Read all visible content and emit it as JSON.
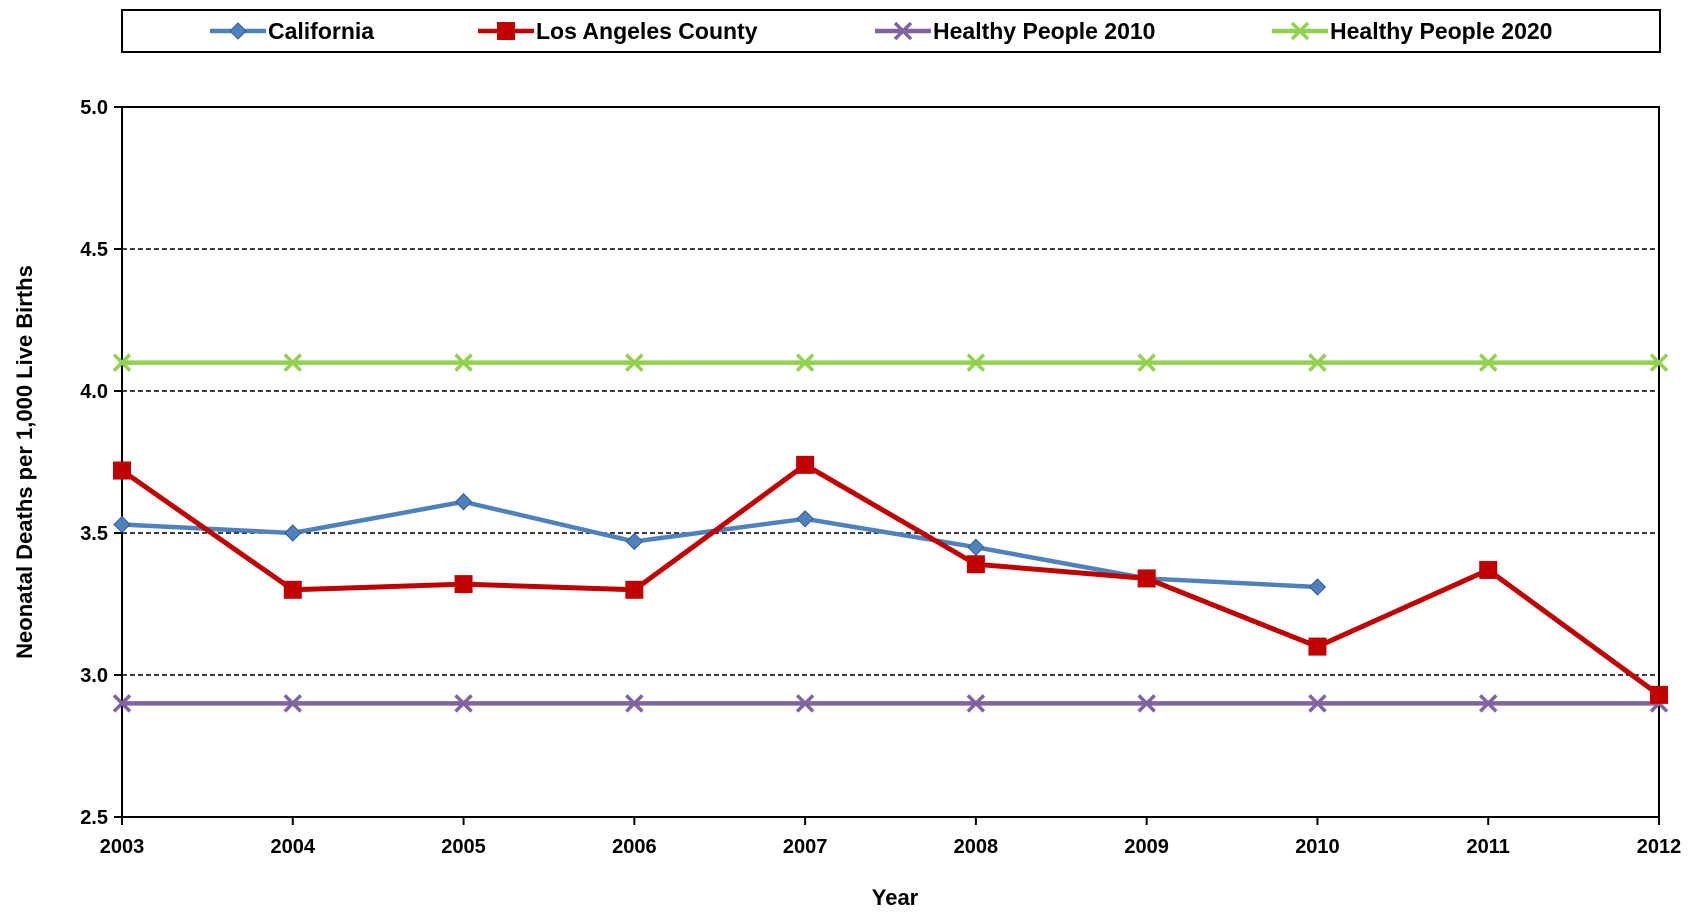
{
  "chart_data": {
    "type": "line",
    "title": "",
    "xlabel": "Year",
    "ylabel": "Neonatal Deaths per 1,000 Live Births",
    "x": [
      "2003",
      "2004",
      "2005",
      "2006",
      "2007",
      "2008",
      "2009",
      "2010",
      "2011",
      "2012"
    ],
    "yticks": [
      "2.5",
      "3.0",
      "3.5",
      "4.0",
      "4.5",
      "5.0"
    ],
    "ylim": [
      2.5,
      5.0
    ],
    "grid": "horizontal dashed",
    "legend_position": "top",
    "series": [
      {
        "name": "California",
        "color": "#4f81bd",
        "marker": "diamond",
        "values": [
          3.53,
          3.5,
          3.61,
          3.47,
          3.55,
          3.45,
          3.34,
          3.31,
          null,
          null
        ]
      },
      {
        "name": "Los Angeles County",
        "color": "#c00000",
        "marker": "square",
        "values": [
          3.72,
          3.3,
          3.32,
          3.3,
          3.74,
          3.39,
          3.34,
          3.1,
          3.37,
          2.93
        ]
      },
      {
        "name": "Healthy People 2010",
        "color": "#8064a2",
        "marker": "x",
        "values": [
          2.9,
          2.9,
          2.9,
          2.9,
          2.9,
          2.9,
          2.9,
          2.9,
          2.9,
          2.9
        ]
      },
      {
        "name": "Healthy People 2020",
        "color": "#92d050",
        "marker": "x",
        "values": [
          4.1,
          4.1,
          4.1,
          4.1,
          4.1,
          4.1,
          4.1,
          4.1,
          4.1,
          4.1
        ]
      }
    ]
  }
}
